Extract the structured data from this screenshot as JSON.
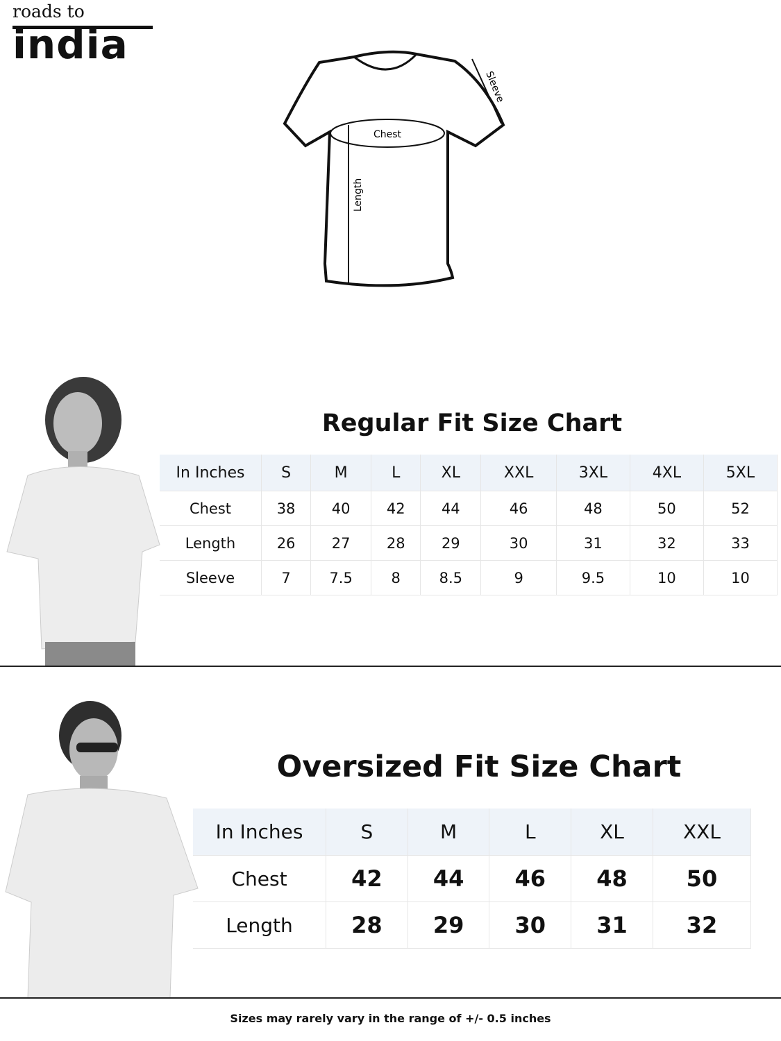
{
  "brand": {
    "top": "roads to",
    "main": "india"
  },
  "diagram": {
    "chest": "Chest",
    "length": "Length",
    "sleeve": "Sleeve"
  },
  "regular": {
    "title": "Regular Fit Size Chart",
    "headers": [
      "In Inches",
      "S",
      "M",
      "L",
      "XL",
      "XXL",
      "3XL",
      "4XL",
      "5XL"
    ],
    "rows": [
      {
        "label": "Chest",
        "values": [
          "38",
          "40",
          "42",
          "44",
          "46",
          "48",
          "50",
          "52"
        ]
      },
      {
        "label": "Length",
        "values": [
          "26",
          "27",
          "28",
          "29",
          "30",
          "31",
          "32",
          "33"
        ]
      },
      {
        "label": "Sleeve",
        "values": [
          "7",
          "7.5",
          "8",
          "8.5",
          "9",
          "9.5",
          "10",
          "10"
        ]
      }
    ]
  },
  "oversized": {
    "title": "Oversized Fit Size Chart",
    "headers": [
      "In Inches",
      "S",
      "M",
      "L",
      "XL",
      "XXL"
    ],
    "rows": [
      {
        "label": "Chest",
        "values": [
          "42",
          "44",
          "46",
          "48",
          "50"
        ]
      },
      {
        "label": "Length",
        "values": [
          "28",
          "29",
          "30",
          "31",
          "32"
        ]
      }
    ]
  },
  "footer": "Sizes may rarely vary in the range of +/- 0.5 inches",
  "colors": {
    "header_bg": "#eef3f9",
    "text": "#111111"
  }
}
